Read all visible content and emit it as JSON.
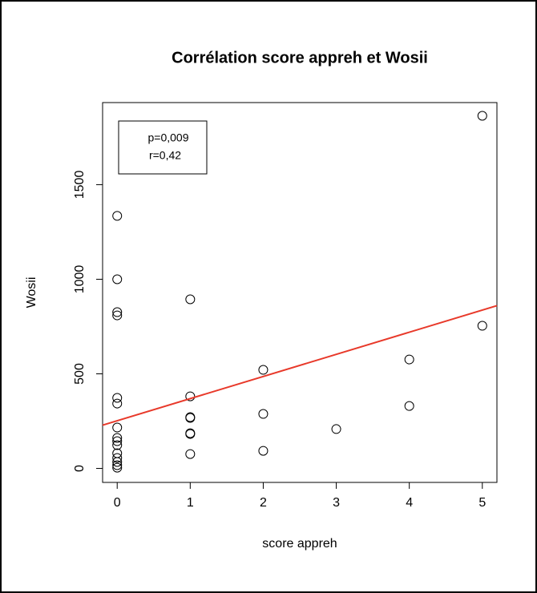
{
  "chart_data": {
    "type": "scatter",
    "title": "Corrélation score appreh et Wosii",
    "xlabel": "score appreh",
    "ylabel": "Wosii",
    "annotations": [
      "p=0,009",
      "r=0,42"
    ],
    "x": [
      0,
      0,
      0,
      0,
      0,
      0,
      0,
      0,
      0,
      0,
      0,
      0,
      0,
      0,
      0,
      1,
      1,
      1,
      1,
      1,
      1,
      1,
      2,
      2,
      2,
      3,
      4,
      4,
      5,
      5
    ],
    "values": [
      1335,
      1000,
      826,
      809,
      373,
      343,
      216,
      161,
      144,
      123,
      80,
      55,
      34,
      17,
      4,
      894,
      381,
      271,
      267,
      186,
      182,
      76,
      521,
      288,
      93,
      208,
      576,
      330,
      1864,
      754
    ],
    "fit": {
      "intercept": 252,
      "slope": 117,
      "color": "#e8392a"
    },
    "xlim": [
      -0.2,
      5.2
    ],
    "xticks": [
      0,
      1,
      2,
      3,
      4,
      5
    ],
    "ylim": [
      -74,
      1934
    ],
    "yticks": [
      0,
      500,
      1000,
      1500
    ]
  }
}
